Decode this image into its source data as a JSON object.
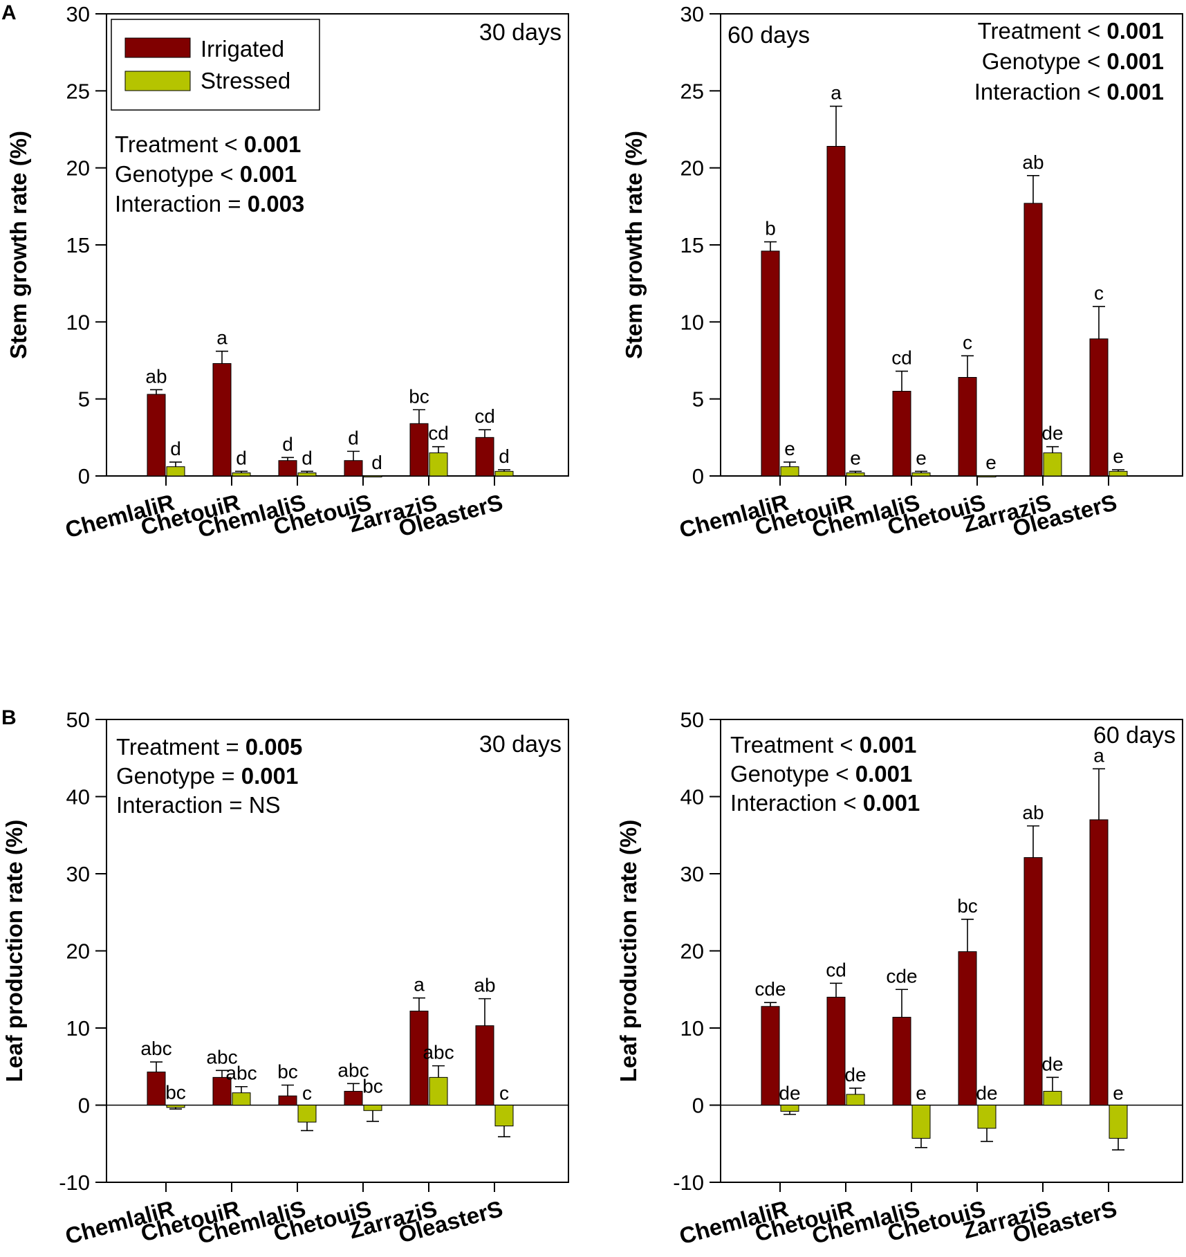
{
  "panel_labels": [
    "A",
    "B"
  ],
  "legend": {
    "irrigated": "Irrigated",
    "stressed": "Stressed"
  },
  "colors": {
    "irrigated": "#800000",
    "stressed": "#B5C400",
    "axis": "#000000"
  },
  "chart_data": [
    {
      "type": "bar",
      "title": "30 days",
      "ylabel": "Stem growth rate (%)",
      "xlabel": "",
      "ylim": [
        0,
        30
      ],
      "yticks": [
        0,
        5,
        10,
        15,
        20,
        25,
        30
      ],
      "categories": [
        "ChemlaliR",
        "ChetouiR",
        "ChemlaliS",
        "ChetouiS",
        "ZarraziS",
        "OleasterS"
      ],
      "series": [
        {
          "name": "Irrigated",
          "values": [
            5.3,
            7.3,
            1.0,
            1.0,
            3.4,
            2.5
          ],
          "errors": [
            0.3,
            0.8,
            0.2,
            0.6,
            0.9,
            0.5
          ],
          "labels": [
            "ab",
            "a",
            "d",
            "d",
            "bc",
            "cd"
          ]
        },
        {
          "name": "Stressed",
          "values": [
            0.6,
            0.2,
            0.2,
            0.0,
            1.5,
            0.3
          ],
          "errors": [
            0.3,
            0.1,
            0.1,
            0.0,
            0.4,
            0.1
          ],
          "labels": [
            "d",
            "d",
            "d",
            "d",
            "cd",
            "d"
          ]
        }
      ],
      "stats": [
        "Treatment < |0.001",
        "Genotype < |0.001",
        "Interaction = |0.003"
      ]
    },
    {
      "type": "bar",
      "title": "60 days",
      "ylabel": "Stem growth rate (%)",
      "xlabel": "",
      "ylim": [
        0,
        30
      ],
      "yticks": [
        0,
        5,
        10,
        15,
        20,
        25,
        30
      ],
      "categories": [
        "ChemlaliR",
        "ChetouiR",
        "ChemlaliS",
        "ChetouiS",
        "ZarraziS",
        "OleasterS"
      ],
      "series": [
        {
          "name": "Irrigated",
          "values": [
            14.6,
            21.4,
            5.5,
            6.4,
            17.7,
            8.9
          ],
          "errors": [
            0.6,
            2.6,
            1.3,
            1.4,
            1.8,
            2.1
          ],
          "labels": [
            "b",
            "a",
            "cd",
            "c",
            "ab",
            "c"
          ]
        },
        {
          "name": "Stressed",
          "values": [
            0.6,
            0.2,
            0.2,
            0.0,
            1.5,
            0.3
          ],
          "errors": [
            0.3,
            0.1,
            0.1,
            0.0,
            0.4,
            0.1
          ],
          "labels": [
            "e",
            "e",
            "e",
            "e",
            "de",
            "e"
          ]
        }
      ],
      "stats": [
        "Treatment < |0.001",
        "Genotype < |0.001",
        "Interaction < |0.001"
      ]
    },
    {
      "type": "bar",
      "title": "30 days",
      "ylabel": "Leaf production rate (%)",
      "xlabel": "",
      "ylim": [
        -10,
        50
      ],
      "yticks": [
        -10,
        0,
        10,
        20,
        30,
        40,
        50
      ],
      "categories": [
        "ChemlaliR",
        "ChetouiR",
        "ChemlaliS",
        "ChetouiS",
        "ZarraziS",
        "OleasterS"
      ],
      "series": [
        {
          "name": "Irrigated",
          "values": [
            4.3,
            3.6,
            1.2,
            1.8,
            12.2,
            10.3
          ],
          "errors": [
            1.3,
            0.9,
            1.4,
            1.0,
            1.7,
            3.5
          ],
          "labels": [
            "abc",
            "abc",
            "bc",
            "abc",
            "a",
            "ab"
          ]
        },
        {
          "name": "Stressed",
          "values": [
            -0.3,
            1.6,
            -2.2,
            -0.7,
            3.6,
            -2.7
          ],
          "errors": [
            0.2,
            0.8,
            1.1,
            1.4,
            1.5,
            1.4
          ],
          "labels": [
            "bc",
            "abc",
            "c",
            "bc",
            "abc",
            "c"
          ]
        }
      ],
      "stats": [
        "Treatment = |0.005",
        "Genotype = |0.001",
        "Interaction = NS|"
      ]
    },
    {
      "type": "bar",
      "title": "60 days",
      "ylabel": "Leaf production rate (%)",
      "xlabel": "",
      "ylim": [
        -10,
        50
      ],
      "yticks": [
        -10,
        0,
        10,
        20,
        30,
        40,
        50
      ],
      "categories": [
        "ChemlaliR",
        "ChetouiR",
        "ChemlaliS",
        "ChetouiS",
        "ZarraziS",
        "OleasterS"
      ],
      "series": [
        {
          "name": "Irrigated",
          "values": [
            12.8,
            14.0,
            11.4,
            19.9,
            32.1,
            37.0
          ],
          "errors": [
            0.5,
            1.8,
            3.6,
            4.2,
            4.1,
            6.6
          ],
          "labels": [
            "cde",
            "cd",
            "cde",
            "bc",
            "ab",
            "a"
          ]
        },
        {
          "name": "Stressed",
          "values": [
            -0.8,
            1.4,
            -4.3,
            -3.0,
            1.8,
            -4.3
          ],
          "errors": [
            0.4,
            0.8,
            1.2,
            1.7,
            1.8,
            1.5
          ],
          "labels": [
            "de",
            "de",
            "e",
            "de",
            "de",
            "e"
          ]
        }
      ],
      "stats": [
        "Treatment < |0.001",
        "Genotype < |0.001",
        "Interaction < |0.001"
      ]
    }
  ]
}
